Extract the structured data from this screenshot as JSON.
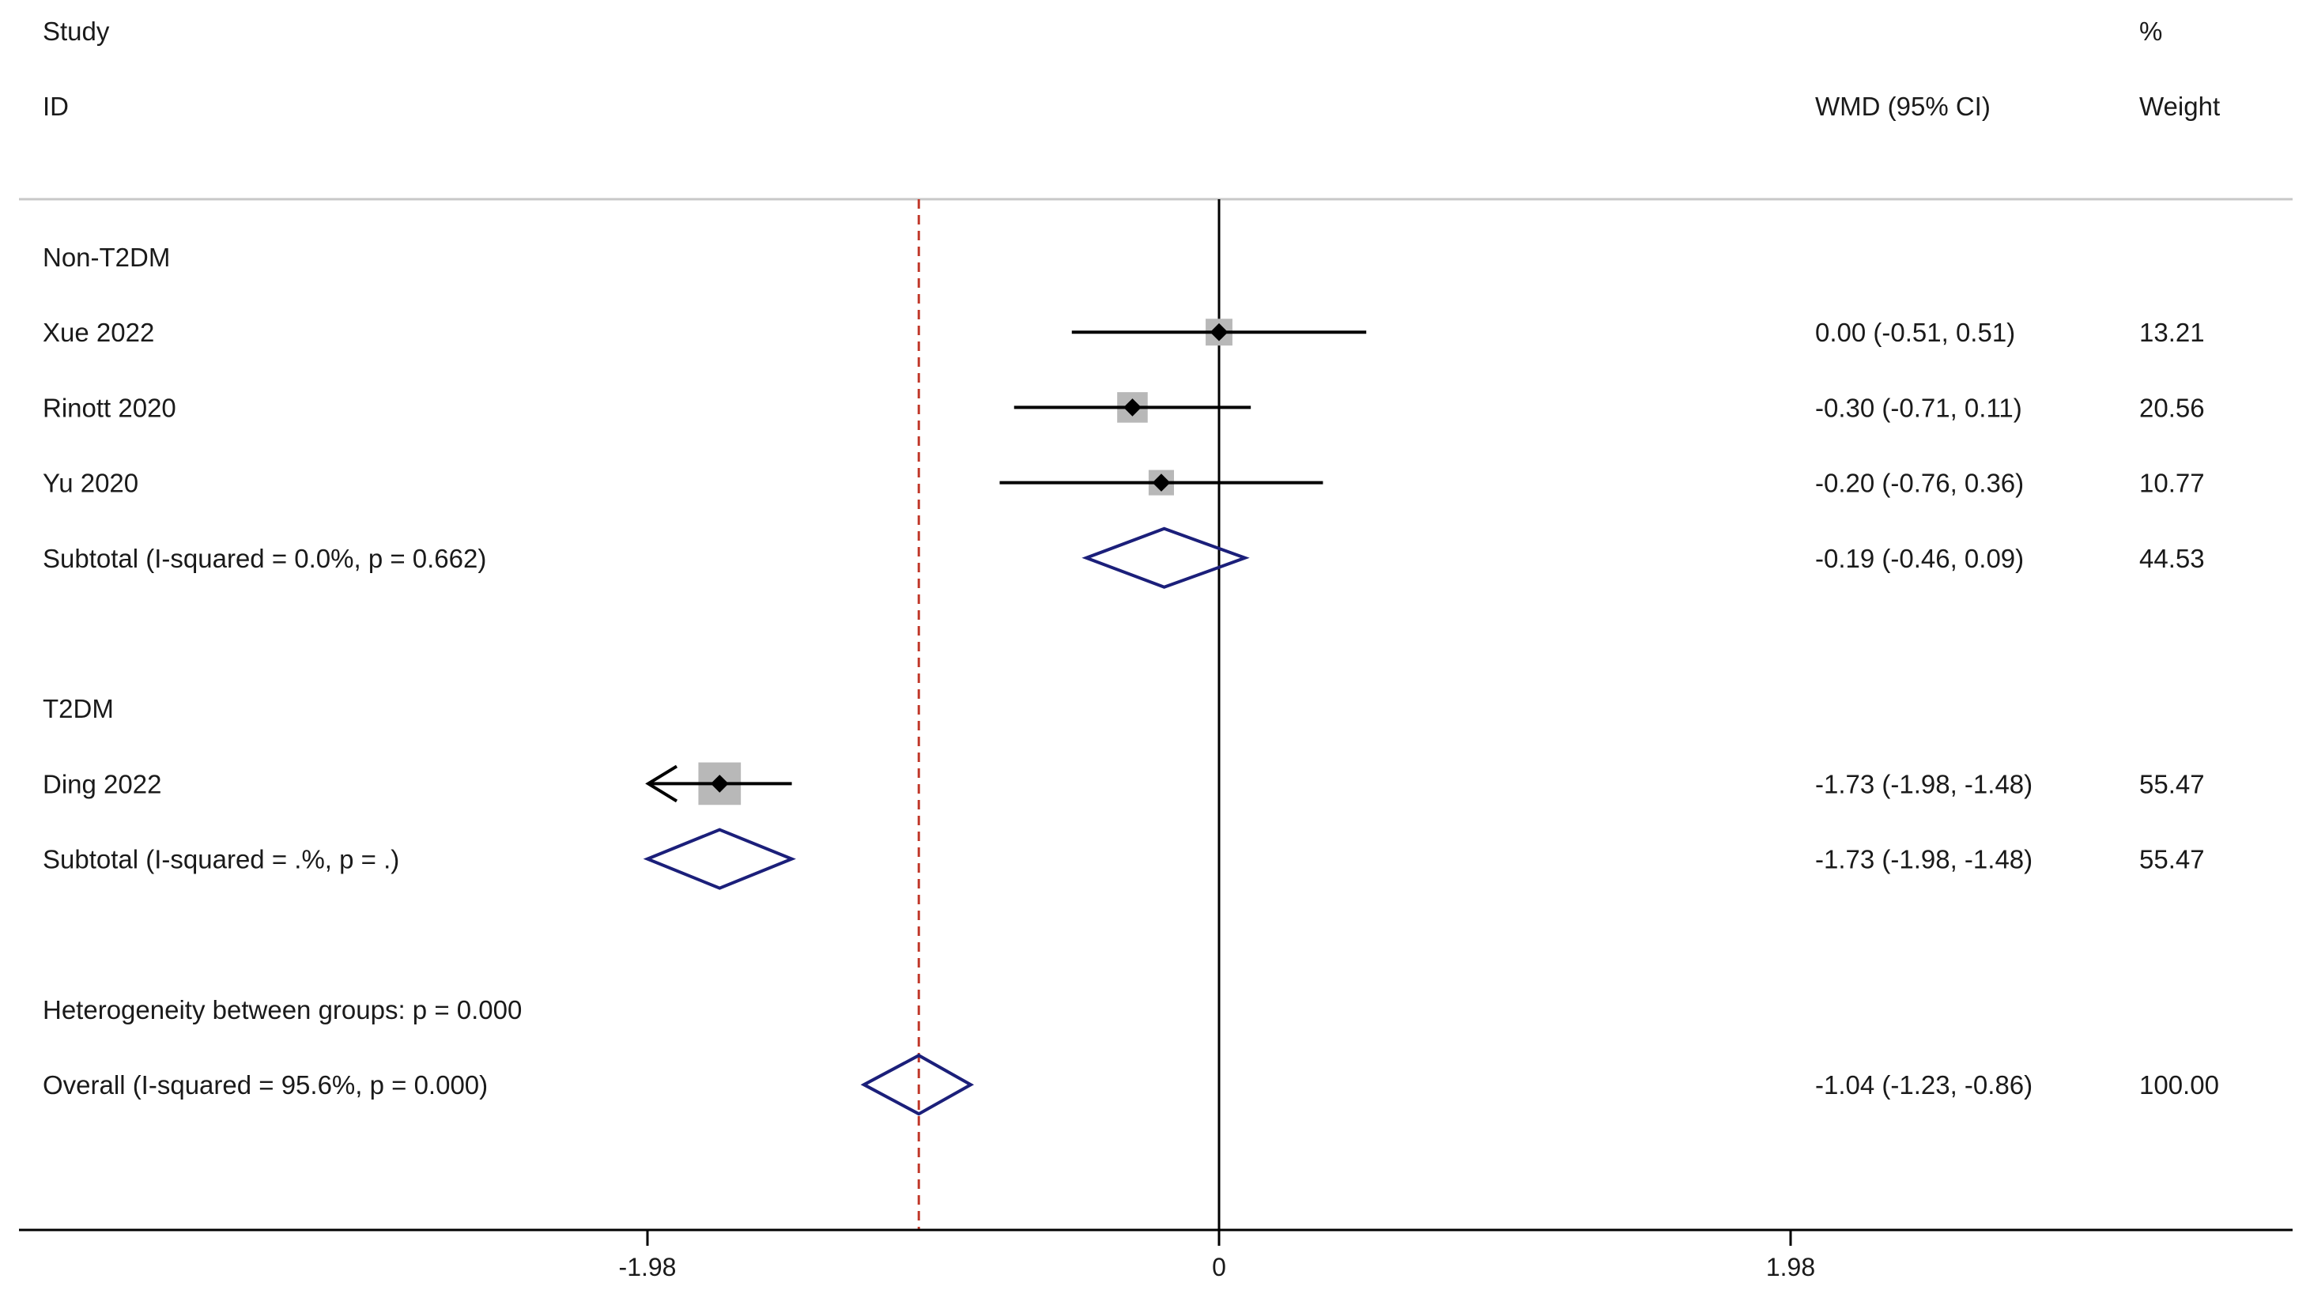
{
  "header": {
    "study_label": "Study",
    "id_label": "ID",
    "effect_label": "WMD (95% CI)",
    "percent_label": "%",
    "weight_label": "Weight"
  },
  "colors": {
    "diamond": "#1b1f7a",
    "null_line": "#000000",
    "overall_line": "#c0392b",
    "box": "#b8b8b8",
    "ci_line": "#000000",
    "rule": "#c8c8c8"
  },
  "chart_data": {
    "type": "forest",
    "measure": "WMD",
    "xlim": [
      -3.56,
      3.56
    ],
    "null_value": 0,
    "overall_value": -1.04,
    "x_ticks": [
      -1.98,
      0,
      1.98
    ],
    "x_tick_labels": [
      "-1.98",
      "0",
      "1.98"
    ],
    "rows": [
      {
        "kind": "group",
        "label": "Non-T2DM"
      },
      {
        "kind": "study",
        "label": "Xue 2022",
        "est": 0.0,
        "lo": -0.51,
        "hi": 0.51,
        "ci_text": "0.00 (-0.51, 0.51)",
        "weight": "13.21"
      },
      {
        "kind": "study",
        "label": "Rinott 2020",
        "est": -0.3,
        "lo": -0.71,
        "hi": 0.11,
        "ci_text": "-0.30 (-0.71, 0.11)",
        "weight": "20.56"
      },
      {
        "kind": "study",
        "label": "Yu 2020",
        "est": -0.2,
        "lo": -0.76,
        "hi": 0.36,
        "ci_text": "-0.20 (-0.76, 0.36)",
        "weight": "10.77"
      },
      {
        "kind": "subtotal",
        "label": "Subtotal  (I-squared = 0.0%, p = 0.662)",
        "est": -0.19,
        "lo": -0.46,
        "hi": 0.09,
        "ci_text": "-0.19 (-0.46, 0.09)",
        "weight": "44.53"
      },
      {
        "kind": "blank"
      },
      {
        "kind": "group",
        "label": "T2DM"
      },
      {
        "kind": "study",
        "label": "Ding 2022",
        "est": -1.73,
        "lo": -1.98,
        "hi": -1.48,
        "ci_text": "-1.73 (-1.98, -1.48)",
        "weight": "55.47",
        "arrow_left": true
      },
      {
        "kind": "subtotal",
        "label": "Subtotal  (I-squared = .%, p = .)",
        "est": -1.73,
        "lo": -1.98,
        "hi": -1.48,
        "ci_text": "-1.73 (-1.98, -1.48)",
        "weight": "55.47"
      },
      {
        "kind": "blank"
      },
      {
        "kind": "note",
        "label": "Heterogeneity between groups: p = 0.000"
      },
      {
        "kind": "overall",
        "label": "Overall  (I-squared = 95.6%, p = 0.000)",
        "est": -1.04,
        "lo": -1.23,
        "hi": -0.86,
        "ci_text": "-1.04 (-1.23, -0.86)",
        "weight": "100.00"
      }
    ]
  }
}
